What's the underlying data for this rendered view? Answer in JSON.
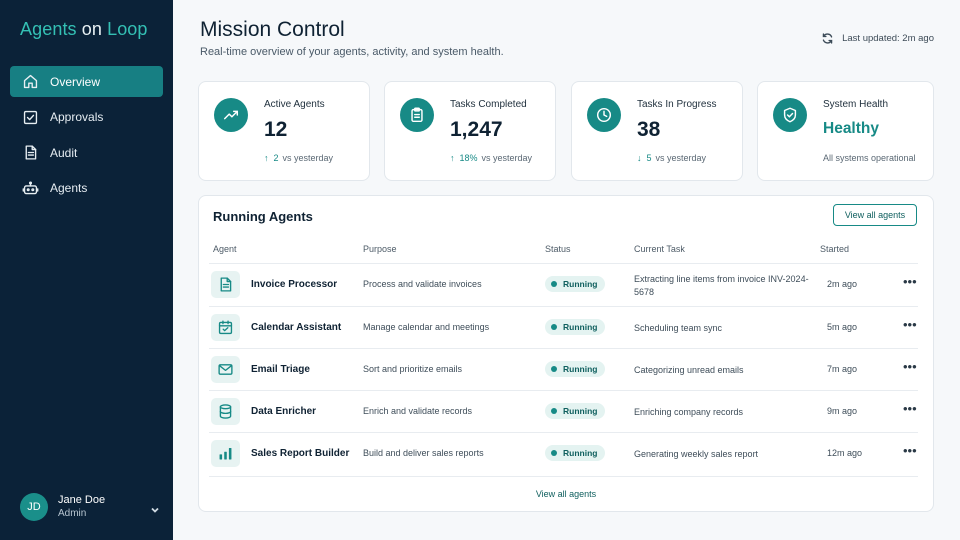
{
  "brand": {
    "part1": "Agents",
    "part2": " on ",
    "part3": "Loop"
  },
  "sidebar": {
    "items": [
      {
        "label": "Overview",
        "icon": "home-icon"
      },
      {
        "label": "Approvals",
        "icon": "checkbox-icon"
      },
      {
        "label": "Audit",
        "icon": "document-icon"
      },
      {
        "label": "Agents",
        "icon": "robot-icon"
      }
    ],
    "active_index": 0
  },
  "user": {
    "initials": "JD",
    "name": "Jane Doe",
    "role": "Admin"
  },
  "header": {
    "title": "Mission Control",
    "subtitle": "Real-time overview of your agents, activity, and system health.",
    "last_updated": "Last updated: 2m ago"
  },
  "stats": [
    {
      "label": "Active Agents",
      "value": "12",
      "delta_arrow": "↑",
      "delta": "2",
      "delta_suffix": "vs yesterday",
      "icon": "trend-up-icon"
    },
    {
      "label": "Tasks Completed",
      "value": "1,247",
      "delta_arrow": "↑",
      "delta": "18%",
      "delta_suffix": "vs yesterday",
      "icon": "clipboard-icon"
    },
    {
      "label": "Tasks In Progress",
      "value": "38",
      "delta_arrow": "↓",
      "delta": "5",
      "delta_suffix": "vs yesterday",
      "icon": "clock-icon"
    },
    {
      "label": "System Health",
      "value": "Healthy",
      "note": "All systems operational",
      "icon": "shield-check-icon"
    }
  ],
  "running": {
    "title": "Running Agents",
    "view_all_button": "View all agents",
    "footer_link": "View all agents",
    "columns": [
      "Agent",
      "Purpose",
      "Status",
      "Current Task",
      "Started"
    ],
    "rows": [
      {
        "name": "Invoice Processor",
        "purpose": "Process and validate invoices",
        "status": "Running",
        "task": "Extracting line items from invoice INV-2024-5678",
        "started": "2m ago",
        "icon": "file-icon"
      },
      {
        "name": "Calendar Assistant",
        "purpose": "Manage calendar and meetings",
        "status": "Running",
        "task": "Scheduling team sync",
        "started": "5m ago",
        "icon": "calendar-icon"
      },
      {
        "name": "Email Triage",
        "purpose": "Sort and prioritize emails",
        "status": "Running",
        "task": "Categorizing unread emails",
        "started": "7m ago",
        "icon": "mail-icon"
      },
      {
        "name": "Data Enricher",
        "purpose": "Enrich and validate records",
        "status": "Running",
        "task": "Enriching company records",
        "started": "9m ago",
        "icon": "database-icon"
      },
      {
        "name": "Sales Report Builder",
        "purpose": "Build and deliver sales reports",
        "status": "Running",
        "task": "Generating weekly sales report",
        "started": "12m ago",
        "icon": "bar-chart-icon"
      }
    ],
    "more_label": "•••"
  },
  "colors": {
    "sidebar": "#0b2238",
    "accent": "#178a86",
    "active_nav": "#177f83"
  }
}
